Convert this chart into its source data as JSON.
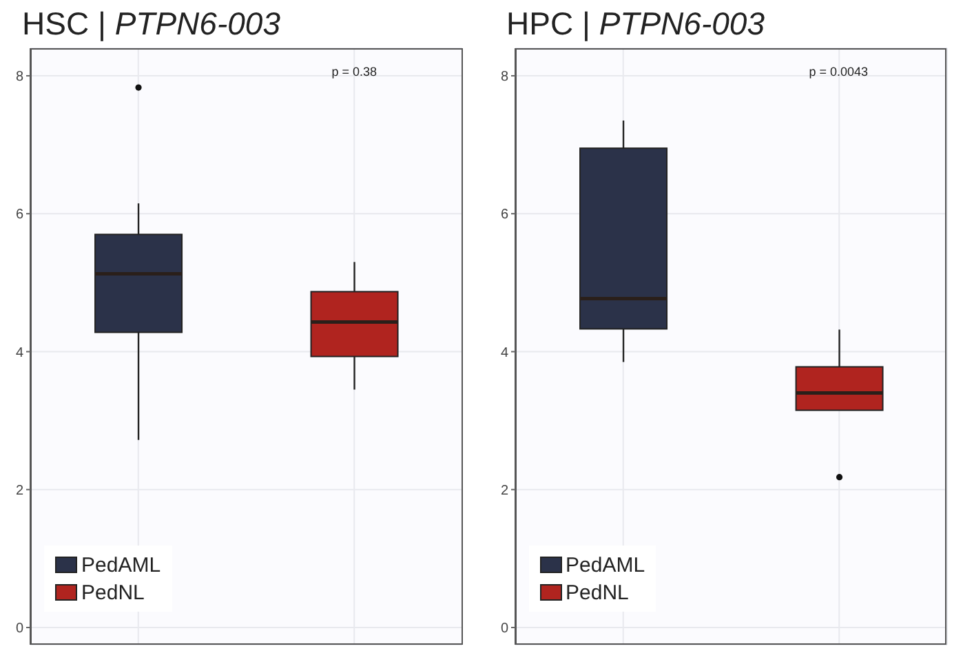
{
  "chart_data": [
    {
      "type": "box",
      "title": "HSC | PTPN6-003",
      "categories": [
        null,
        null
      ],
      "ylim": [
        -0.25,
        8.4
      ],
      "yticks": [
        0,
        2,
        4,
        6,
        8
      ],
      "grid": true,
      "legend": "bottom left",
      "tick_labels": "y",
      "annotations": [
        "p = 0.38"
      ],
      "series": [
        {
          "name": "PedAML",
          "color": "#2b3249",
          "boxes": [
            {
              "low": 2.72,
              "q1": 4.28,
              "median": 5.13,
              "q3": 5.7,
              "high": 6.15,
              "outliers": [
                7.83
              ]
            },
            null
          ]
        },
        {
          "name": "PedNL",
          "color": "#b0241f",
          "boxes": [
            null,
            {
              "low": 3.45,
              "q1": 3.93,
              "median": 4.43,
              "q3": 4.87,
              "high": 5.3
            }
          ]
        }
      ]
    },
    {
      "type": "box",
      "title": "HPC | PTPN6-003",
      "categories": [
        null,
        null
      ],
      "ylim": [
        -0.25,
        8.4
      ],
      "yticks": [
        0,
        2,
        4,
        6,
        8
      ],
      "grid": true,
      "legend": "bottom left",
      "tick_labels": "y",
      "annotations": [
        "p = 0.0043"
      ],
      "series": [
        {
          "name": "PedAML",
          "color": "#2b3249",
          "boxes": [
            {
              "low": 3.85,
              "q1": 4.33,
              "median": 4.77,
              "q3": 6.95,
              "high": 7.35
            },
            null
          ]
        },
        {
          "name": "PedNL",
          "color": "#b0241f",
          "boxes": [
            null,
            {
              "low": 3.15,
              "q1": 3.15,
              "median": 3.4,
              "q3": 3.78,
              "high": 4.32,
              "outliers": [
                2.18
              ]
            }
          ]
        }
      ]
    }
  ]
}
